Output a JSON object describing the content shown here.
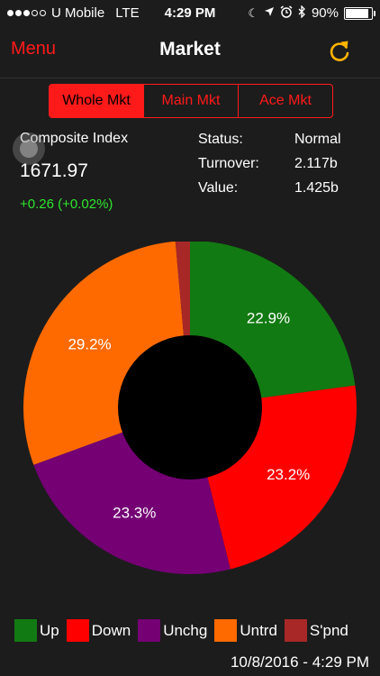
{
  "status_bar": {
    "carrier": "U Mobile",
    "network": "LTE",
    "time": "4:29 PM",
    "battery": "90%",
    "battery_level": 0.9,
    "signal_bars_filled": 3,
    "signal_bars_total": 5,
    "icons": [
      "moon-icon",
      "location-arrow-icon",
      "alarm-icon",
      "bluetooth-icon"
    ]
  },
  "nav": {
    "menu_label": "Menu",
    "title": "Market",
    "refresh_icon": "refresh-icon",
    "menu_color": "#ff1a1a",
    "refresh_color": "#ffb400"
  },
  "tabs": [
    {
      "label": "Whole Mkt",
      "active": true
    },
    {
      "label": "Main Mkt",
      "active": false
    },
    {
      "label": "Ace Mkt",
      "active": false
    }
  ],
  "index": {
    "label": "Composite Index",
    "value": "1671.97",
    "change": "+0.26 (+0.02%)",
    "change_color": "#2ee62e"
  },
  "stats": [
    {
      "label": "Status:",
      "value": "Normal"
    },
    {
      "label": "Turnover:",
      "value": "2.117b"
    },
    {
      "label": "Value:",
      "value": "1.425b"
    }
  ],
  "chart_data": {
    "type": "pie",
    "donut": true,
    "categories": [
      "Up",
      "Down",
      "Unchg",
      "Untrd",
      "S'pnd"
    ],
    "values": [
      22.9,
      23.2,
      23.3,
      29.2,
      1.4
    ],
    "labels": [
      "22.9%",
      "23.2%",
      "23.3%",
      "29.2%",
      ""
    ],
    "colors": [
      "#127a12",
      "#ff0000",
      "#740074",
      "#ff6a00",
      "#a82828"
    ],
    "legend_position": "bottom"
  },
  "footer": {
    "timestamp": "10/8/2016 - 4:29 PM"
  }
}
